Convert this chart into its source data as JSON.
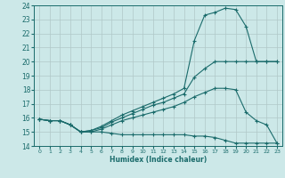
{
  "xlabel": "Humidex (Indice chaleur)",
  "ylabel": "",
  "xlim": [
    -0.5,
    23.5
  ],
  "ylim": [
    14,
    24
  ],
  "yticks": [
    14,
    15,
    16,
    17,
    18,
    19,
    20,
    21,
    22,
    23,
    24
  ],
  "xticks": [
    0,
    1,
    2,
    3,
    4,
    5,
    6,
    7,
    8,
    9,
    10,
    11,
    12,
    13,
    14,
    15,
    16,
    17,
    18,
    19,
    20,
    21,
    22,
    23
  ],
  "background_color": "#cce8e8",
  "grid_color": "#b0c8c8",
  "line_color": "#1a6b6b",
  "series": [
    {
      "x": [
        0,
        1,
        2,
        3,
        4,
        5,
        6,
        7,
        8,
        9,
        10,
        11,
        12,
        13,
        14,
        15,
        16,
        17,
        18,
        19,
        20,
        21,
        22,
        23
      ],
      "y": [
        15.9,
        15.8,
        15.8,
        15.5,
        15.0,
        15.0,
        15.0,
        14.9,
        14.8,
        14.8,
        14.8,
        14.8,
        14.8,
        14.8,
        14.8,
        14.7,
        14.7,
        14.6,
        14.4,
        14.2,
        14.2,
        14.2,
        14.2,
        14.2
      ]
    },
    {
      "x": [
        0,
        1,
        2,
        3,
        4,
        5,
        6,
        7,
        8,
        9,
        10,
        11,
        12,
        13,
        14,
        15,
        16,
        17,
        18,
        19,
        20,
        21,
        22,
        23
      ],
      "y": [
        15.9,
        15.8,
        15.8,
        15.5,
        15.0,
        15.0,
        15.2,
        15.5,
        15.8,
        16.0,
        16.2,
        16.4,
        16.6,
        16.8,
        17.1,
        17.5,
        17.8,
        18.1,
        18.1,
        18.0,
        16.4,
        15.8,
        15.5,
        14.2
      ]
    },
    {
      "x": [
        0,
        1,
        2,
        3,
        4,
        5,
        6,
        7,
        8,
        9,
        10,
        11,
        12,
        13,
        14,
        15,
        16,
        17,
        18,
        19,
        20,
        21,
        22,
        23
      ],
      "y": [
        15.9,
        15.8,
        15.8,
        15.5,
        15.0,
        15.1,
        15.3,
        15.7,
        16.0,
        16.3,
        16.6,
        16.9,
        17.1,
        17.4,
        17.7,
        18.9,
        19.5,
        20.0,
        20.0,
        20.0,
        20.0,
        20.0,
        20.0,
        20.0
      ]
    },
    {
      "x": [
        0,
        1,
        2,
        3,
        4,
        5,
        6,
        7,
        8,
        9,
        10,
        11,
        12,
        13,
        14,
        15,
        16,
        17,
        18,
        19,
        20,
        21,
        22,
        23
      ],
      "y": [
        15.9,
        15.8,
        15.8,
        15.5,
        15.0,
        15.1,
        15.4,
        15.8,
        16.2,
        16.5,
        16.8,
        17.1,
        17.4,
        17.7,
        18.1,
        21.5,
        23.3,
        23.5,
        23.8,
        23.7,
        22.5,
        20.0,
        20.0,
        20.0
      ]
    }
  ]
}
